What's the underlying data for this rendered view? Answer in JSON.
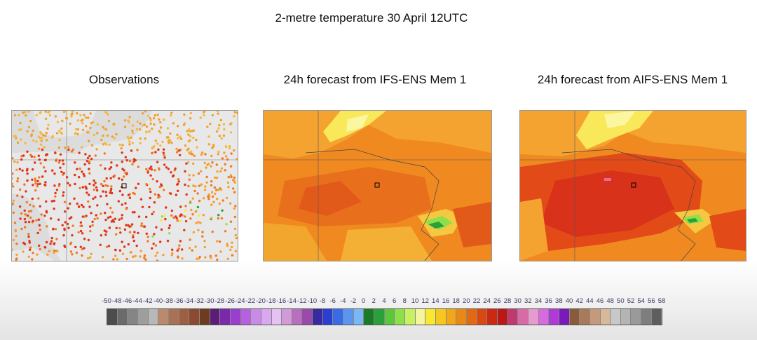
{
  "main_title": "2-metre temperature 30 April 12UTC",
  "panels": {
    "observations": {
      "title": "Observations"
    },
    "ifs": {
      "title": "24h forecast from IFS-ENS Mem 1"
    },
    "aifs": {
      "title": "24h forecast from AIFS-ENS Mem 1"
    }
  },
  "colorbar": {
    "labels": [
      "-50",
      "-48",
      "-46",
      "-44",
      "-42",
      "-40",
      "-38",
      "-36",
      "-34",
      "-32",
      "-30",
      "-28",
      "-26",
      "-24",
      "-22",
      "-20",
      "-18",
      "-16",
      "-14",
      "-12",
      "-10",
      "-8",
      "-6",
      "-4",
      "-2",
      "0",
      "2",
      "4",
      "6",
      "8",
      "10",
      "12",
      "14",
      "16",
      "18",
      "20",
      "22",
      "24",
      "26",
      "28",
      "30",
      "32",
      "34",
      "36",
      "38",
      "40",
      "42",
      "44",
      "46",
      "48",
      "50",
      "52",
      "54",
      "56",
      "58"
    ],
    "colors": [
      "#4d4d4d",
      "#6b6b6b",
      "#858585",
      "#9e9e9e",
      "#b8b8b8",
      "#b98a6b",
      "#a87256",
      "#9c5f42",
      "#8a4b30",
      "#6e3a20",
      "#5a1e7a",
      "#7a2aa8",
      "#9a3ed0",
      "#b560e0",
      "#c98be8",
      "#d9a8ee",
      "#e6c2f2",
      "#d29ad8",
      "#b86fc0",
      "#9a4aa8",
      "#3a2aa0",
      "#2a3ed0",
      "#3a6ae8",
      "#5a96f0",
      "#7ab8f5",
      "#1a7a2a",
      "#2aa03a",
      "#5ac83a",
      "#8ee04a",
      "#c8f060",
      "#f5f5a0",
      "#f8e830",
      "#f5c820",
      "#f0a818",
      "#ea8816",
      "#e26814",
      "#d84812",
      "#cc2a10",
      "#b81818",
      "#c03a70",
      "#d86aa8",
      "#e89ad0",
      "#d86ae0",
      "#b03ad8",
      "#7a1ab8",
      "#8a5a3a",
      "#a87a5a",
      "#c49a7a",
      "#d8b89a",
      "#c8c8c8",
      "#b4b4b4",
      "#9a9a9a",
      "#7e7e7e",
      "#5e5e5e"
    ]
  }
}
